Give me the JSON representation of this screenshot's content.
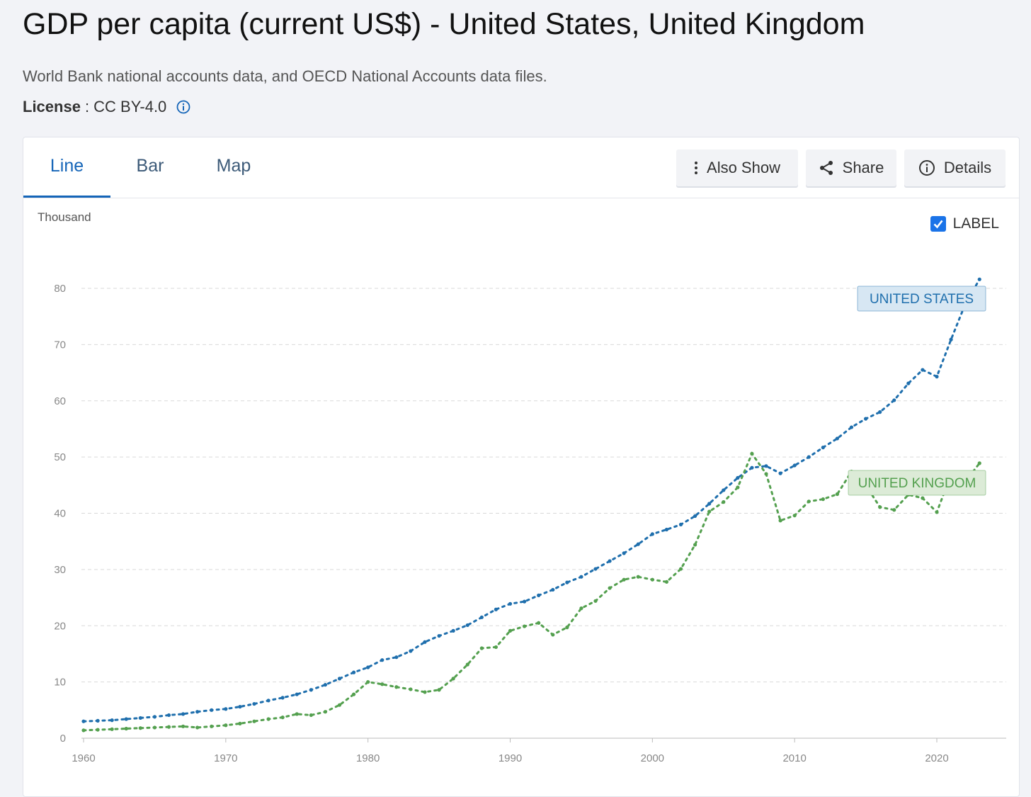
{
  "header": {
    "title": "GDP per capita (current US$) - United States, United Kingdom",
    "source": "World Bank national accounts data, and OECD National Accounts data files.",
    "license_label": "License",
    "license_value": ": CC BY-4.0"
  },
  "tabs": [
    {
      "label": "Line",
      "active": true
    },
    {
      "label": "Bar",
      "active": false
    },
    {
      "label": "Map",
      "active": false
    }
  ],
  "toolbar": {
    "also_show": "Also Show",
    "share": "Share",
    "details": "Details"
  },
  "label_toggle": {
    "label": "LABEL",
    "checked": true
  },
  "colors": {
    "us": "#1f6fad",
    "uk": "#54a04f",
    "us_label_bg": "#d7e7f3",
    "uk_label_bg": "#dcebd7",
    "accent": "#1565b8"
  },
  "chart_data": {
    "type": "line",
    "title": "GDP per capita (current US$) - United States, United Kingdom",
    "ylabel": "Thousand",
    "xlabel": "",
    "xlim": [
      1960,
      2023
    ],
    "ylim": [
      0,
      80
    ],
    "yticks": [
      0,
      10,
      20,
      30,
      40,
      50,
      60,
      70,
      80
    ],
    "xticks": [
      1960,
      1970,
      1980,
      1990,
      2000,
      2010,
      2020
    ],
    "grid": true,
    "legend": "inline labels",
    "x": [
      1960,
      1961,
      1962,
      1963,
      1964,
      1965,
      1966,
      1967,
      1968,
      1969,
      1970,
      1971,
      1972,
      1973,
      1974,
      1975,
      1976,
      1977,
      1978,
      1979,
      1980,
      1981,
      1982,
      1983,
      1984,
      1985,
      1986,
      1987,
      1988,
      1989,
      1990,
      1991,
      1992,
      1993,
      1994,
      1995,
      1996,
      1997,
      1998,
      1999,
      2000,
      2001,
      2002,
      2003,
      2004,
      2005,
      2006,
      2007,
      2008,
      2009,
      2010,
      2011,
      2012,
      2013,
      2014,
      2015,
      2016,
      2017,
      2018,
      2019,
      2020,
      2021,
      2022,
      2023
    ],
    "series": [
      {
        "name": "UNITED STATES",
        "values": [
          3.0,
          3.1,
          3.2,
          3.4,
          3.6,
          3.8,
          4.1,
          4.3,
          4.7,
          5.0,
          5.2,
          5.6,
          6.1,
          6.7,
          7.2,
          7.8,
          8.6,
          9.5,
          10.6,
          11.7,
          12.6,
          13.9,
          14.4,
          15.5,
          17.1,
          18.2,
          19.1,
          20.1,
          21.5,
          22.9,
          23.9,
          24.3,
          25.4,
          26.4,
          27.7,
          28.7,
          30.1,
          31.5,
          32.9,
          34.5,
          36.3,
          37.1,
          38.0,
          39.5,
          41.7,
          44.1,
          46.3,
          48.1,
          48.4,
          47.1,
          48.5,
          50.0,
          51.7,
          53.3,
          55.3,
          56.8,
          58.0,
          60.1,
          63.1,
          65.5,
          64.3,
          70.9,
          77.2,
          81.6
        ]
      },
      {
        "name": "UNITED KINGDOM",
        "values": [
          1.4,
          1.5,
          1.6,
          1.7,
          1.8,
          1.9,
          2.0,
          2.1,
          1.9,
          2.1,
          2.3,
          2.6,
          3.0,
          3.4,
          3.7,
          4.3,
          4.1,
          4.7,
          5.9,
          7.8,
          10.0,
          9.6,
          9.1,
          8.7,
          8.2,
          8.6,
          10.6,
          13.1,
          16.0,
          16.2,
          19.1,
          19.9,
          20.5,
          18.4,
          19.7,
          23.1,
          24.4,
          26.7,
          28.2,
          28.7,
          28.2,
          27.8,
          30.1,
          34.4,
          40.3,
          42.0,
          44.6,
          50.6,
          47.0,
          38.7,
          39.6,
          42.1,
          42.5,
          43.4,
          47.4,
          45.0,
          41.1,
          40.6,
          43.3,
          42.7,
          40.2,
          46.9,
          45.6,
          48.9
        ]
      }
    ]
  }
}
